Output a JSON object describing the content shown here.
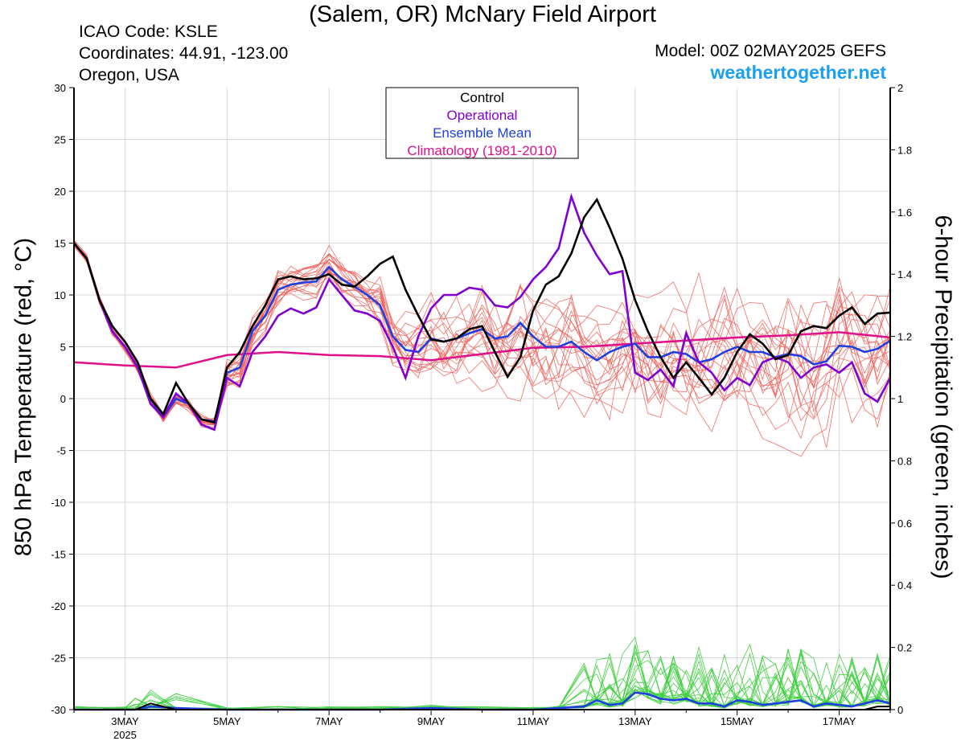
{
  "header": {
    "title": "(Salem, OR) McNary Field Airport",
    "icao": "ICAO Code: KSLE",
    "coords": "Coordinates: 44.91, -123.00",
    "region": "Oregon, USA",
    "model": "Model: 00Z 02MAY2025 GEFS",
    "site": "weathertogether.net"
  },
  "chart_data": {
    "type": "line",
    "ylabel": "850 hPa Temperature (red, °C)",
    "ylabel2": "6-hour Precipitation (green, inches)",
    "x_range_days": [
      2.0,
      18.0
    ],
    "ylim": [
      -30,
      30
    ],
    "ylim2": [
      0,
      2
    ],
    "yticks": [
      "30",
      "25",
      "20",
      "15",
      "10",
      "5",
      "0",
      "-5",
      "-10",
      "-15",
      "-20",
      "-25",
      "-30"
    ],
    "yticks2": [
      "2",
      "1.8",
      "1.6",
      "1.4",
      "1.2",
      "1",
      "0.8",
      "0.6",
      "0.4",
      "0.2",
      "0"
    ],
    "xtick_labels": [
      {
        "day": 3,
        "label": "3MAY",
        "sub": "2025"
      },
      {
        "day": 5,
        "label": "5MAY",
        "sub": ""
      },
      {
        "day": 7,
        "label": "7MAY",
        "sub": ""
      },
      {
        "day": 9,
        "label": "9MAY",
        "sub": ""
      },
      {
        "day": 11,
        "label": "11MAY",
        "sub": ""
      },
      {
        "day": 13,
        "label": "13MAY",
        "sub": ""
      },
      {
        "day": 15,
        "label": "15MAY",
        "sub": ""
      },
      {
        "day": 17,
        "label": "17MAY",
        "sub": ""
      }
    ],
    "legend": {
      "placement": "top-center",
      "entries": [
        {
          "label": "Control",
          "color": "#000000"
        },
        {
          "label": "Operational",
          "color": "#8000d0"
        },
        {
          "label": "Ensemble Mean",
          "color": "#1f3fe0"
        },
        {
          "label": "Climatology (1981-2010)",
          "color": "#e0108a"
        }
      ]
    },
    "colors": {
      "members_temp": "#f0605a",
      "members_precip": "#40d040",
      "control": "#000000",
      "operational": "#8000d0",
      "mean": "#1f3fe0",
      "climatology": "#e0108a"
    },
    "temperature_series": {
      "control": {
        "days": [
          2.0,
          2.25,
          2.5,
          2.75,
          3.0,
          3.25,
          3.5,
          3.75,
          4.0,
          4.25,
          4.5,
          4.75,
          5.0,
          5.25,
          5.5,
          5.75,
          6.0,
          6.25,
          6.5,
          6.75,
          7.0,
          7.25,
          7.5,
          7.75,
          8.0,
          8.25,
          8.5,
          8.75,
          9.0,
          9.25,
          9.5,
          9.75,
          10.0,
          10.25,
          10.5,
          10.75,
          11.0,
          11.25,
          11.5,
          11.75,
          12.0,
          12.25,
          12.5,
          12.75,
          13.0,
          13.25,
          13.5,
          13.75,
          14.0,
          14.25,
          14.5,
          14.75,
          15.0,
          15.25,
          15.5,
          15.75,
          16.0,
          16.25,
          16.5,
          16.75,
          17.0,
          17.25,
          17.5,
          17.75,
          18.0
        ],
        "values": [
          15,
          13.5,
          9.5,
          7,
          5.5,
          3.5,
          0,
          -1.5,
          1.5,
          -0.5,
          -2,
          -2.3,
          3,
          4.5,
          7,
          9,
          11.5,
          11.8,
          11.5,
          11.6,
          12,
          11,
          10.8,
          11.8,
          13,
          13.7,
          10.5,
          8,
          5.7,
          5.5,
          5.8,
          6.7,
          7,
          4.5,
          2.1,
          4,
          8.5,
          11,
          11.8,
          14,
          17.5,
          19.2,
          16.5,
          13.5,
          9.5,
          6.5,
          4,
          2,
          3.5,
          2,
          0.4,
          2,
          4.5,
          6.2,
          5.3,
          3.8,
          4.2,
          6.5,
          7,
          6.8,
          8,
          8.8,
          7.2,
          8.2,
          8.3
        ]
      },
      "operational": {
        "days": [
          2.0,
          2.25,
          2.5,
          2.75,
          3.0,
          3.25,
          3.5,
          3.75,
          4.0,
          4.25,
          4.5,
          4.75,
          5.0,
          5.25,
          5.5,
          5.75,
          6.0,
          6.25,
          6.5,
          6.75,
          7.0,
          7.25,
          7.5,
          7.75,
          8.0,
          8.25,
          8.5,
          8.75,
          9.0,
          9.25,
          9.5,
          9.75,
          10.0,
          10.25,
          10.5,
          10.75,
          11.0,
          11.25,
          11.5,
          11.75,
          12.0,
          12.25,
          12.5,
          12.75,
          13.0,
          13.25,
          13.5,
          13.75,
          14.0,
          14.25,
          14.5,
          14.75,
          15.0,
          15.25,
          15.5,
          15.75,
          16.0,
          16.25,
          16.5,
          16.75,
          17.0,
          17.25,
          17.5,
          17.75,
          18.0
        ],
        "values": [
          15,
          13.5,
          9.5,
          6.5,
          5,
          3,
          -0.5,
          -1.8,
          0.5,
          -0.5,
          -2.5,
          -3,
          2,
          1.2,
          4.5,
          6,
          8,
          8.7,
          8.2,
          8.8,
          11.5,
          10,
          8.5,
          8.2,
          7.5,
          5,
          2,
          6,
          8.7,
          10,
          10,
          10.7,
          10.5,
          9,
          8.8,
          9.8,
          11.5,
          12.7,
          14.5,
          19.5,
          16,
          13.8,
          12,
          12.3,
          2.5,
          1.8,
          2.8,
          1.2,
          6.3,
          3.5,
          2.5,
          0.8,
          2,
          1.3,
          3.5,
          4,
          3.5,
          2,
          3,
          3.3,
          2.5,
          3.5,
          0.5,
          -0.3,
          2
        ]
      },
      "mean": {
        "days": [
          2.0,
          2.25,
          2.5,
          2.75,
          3.0,
          3.25,
          3.5,
          3.75,
          4.0,
          4.25,
          4.5,
          4.75,
          5.0,
          5.25,
          5.5,
          5.75,
          6.0,
          6.25,
          6.5,
          6.75,
          7.0,
          7.25,
          7.5,
          7.75,
          8.0,
          8.25,
          8.5,
          8.75,
          9.0,
          9.25,
          9.5,
          9.75,
          10.0,
          10.25,
          10.5,
          10.75,
          11.0,
          11.25,
          11.5,
          11.75,
          12.0,
          12.25,
          12.5,
          12.75,
          13.0,
          13.25,
          13.5,
          13.75,
          14.0,
          14.25,
          14.5,
          14.75,
          15.0,
          15.25,
          15.5,
          15.75,
          16.0,
          16.25,
          16.5,
          16.75,
          17.0,
          17.25,
          17.5,
          17.75,
          18.0
        ],
        "values": [
          15,
          13.5,
          9.5,
          6.5,
          5,
          3,
          0,
          -1.8,
          0,
          -0.5,
          -2,
          -2.2,
          2.5,
          3,
          6.5,
          8,
          10.5,
          11,
          11.2,
          11.3,
          12.7,
          11.5,
          10.8,
          10,
          9,
          6,
          4.7,
          4.5,
          5.8,
          5.5,
          5.8,
          6.3,
          6.7,
          5.8,
          6,
          7.3,
          6,
          5,
          5,
          5.5,
          4.5,
          3.7,
          4.5,
          5,
          5.3,
          4,
          4,
          4.5,
          4.3,
          3.5,
          3.8,
          4.5,
          5,
          4.5,
          4.5,
          4,
          4.3,
          4.1,
          3.3,
          3.6,
          5.1,
          5,
          4.5,
          4.8,
          5.6
        ]
      },
      "climatology": {
        "days": [
          2.0,
          3.0,
          4.0,
          5.0,
          6.0,
          7.0,
          8.0,
          9.0,
          10.0,
          11.0,
          12.0,
          13.0,
          14.0,
          15.0,
          16.0,
          17.0,
          18.0
        ],
        "values": [
          3.5,
          3.2,
          3.0,
          4.2,
          4.5,
          4.2,
          4.1,
          3.7,
          4.3,
          4.9,
          5.0,
          5.3,
          5.6,
          5.9,
          6.1,
          6.4,
          5.9
        ]
      }
    },
    "precip_series": {
      "control": {
        "days": [
          2.0,
          3.0,
          3.2,
          3.5,
          4.0,
          5.0,
          8.0,
          9.0,
          10.0,
          11.0,
          12.0,
          13.0,
          14.0,
          15.0,
          16.0,
          17.0,
          17.5,
          17.75,
          18.0
        ],
        "values": [
          0,
          0,
          0,
          0.02,
          0,
          0,
          0,
          0,
          0,
          0,
          0,
          0,
          0,
          0,
          0,
          0,
          0,
          0.01,
          0.01
        ]
      },
      "mean": {
        "days": [
          2.0,
          3.0,
          3.2,
          3.5,
          4.0,
          5.0,
          6.0,
          7.0,
          8.0,
          9.0,
          10.0,
          11.0,
          11.5,
          12.0,
          12.25,
          12.5,
          12.75,
          13.0,
          13.25,
          13.5,
          13.75,
          14.0,
          14.25,
          14.5,
          14.75,
          15.0,
          15.25,
          15.5,
          15.75,
          16.0,
          16.25,
          16.5,
          16.75,
          17.0,
          17.25,
          17.5,
          17.75,
          18.0
        ],
        "values": [
          0,
          0,
          0,
          0.01,
          0.005,
          0,
          0,
          0,
          0,
          0.005,
          0,
          0,
          0.005,
          0.01,
          0.03,
          0.015,
          0.02,
          0.055,
          0.05,
          0.035,
          0.03,
          0.035,
          0.02,
          0.02,
          0.01,
          0.03,
          0.025,
          0.015,
          0.02,
          0.025,
          0.03,
          0.01,
          0.02,
          0.015,
          0.01,
          0.02,
          0.03,
          0.02
        ]
      }
    }
  }
}
